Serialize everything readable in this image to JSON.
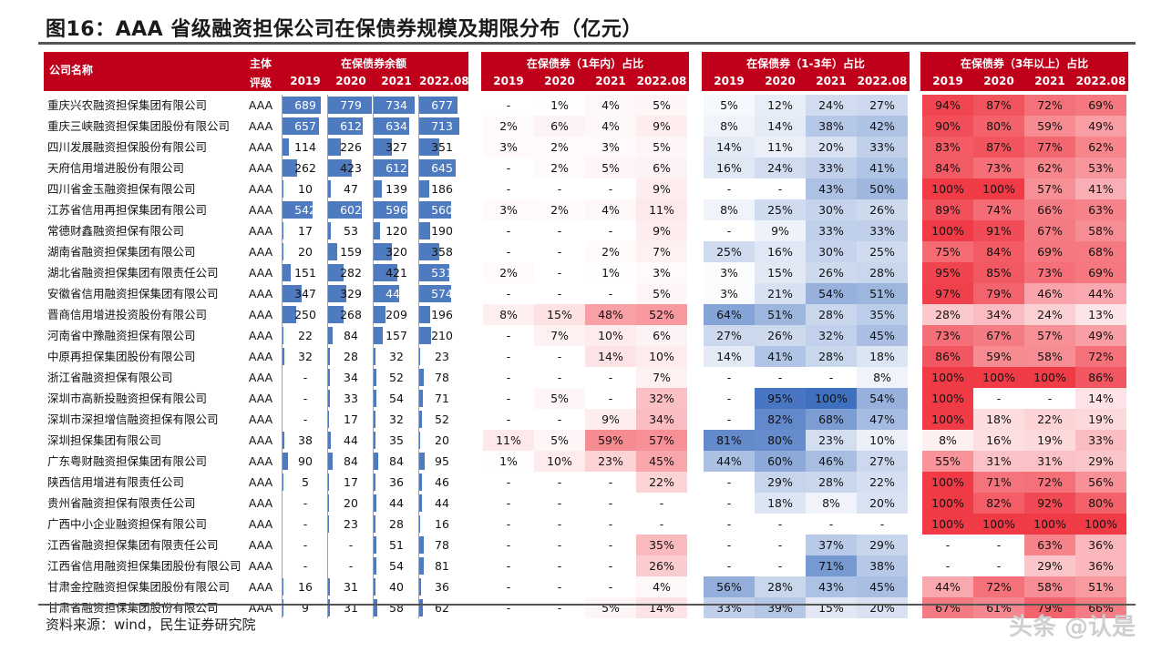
{
  "title": "图16：AAA 省级融资担保公司在保债券规模及期限分布（亿元）",
  "source": "资料来源：wind，民生证券研究院",
  "watermark": "头条 @认是",
  "colors": {
    "header_red": "#c0001a",
    "bar_blue": "#4e7bbf",
    "blue_max": "#3f6fbf",
    "red_max": "#f03a46"
  },
  "headers": {
    "company": "公司名称",
    "rating_1": "主体",
    "rating_2": "评级",
    "group_balance": "在保债券余额",
    "group_1y": "在保债券（1年内）占比",
    "group_1_3y": "在保债券（1-3年）占比",
    "group_3y": "在保债券（3年以上）占比",
    "years": [
      "2019",
      "2020",
      "2021",
      "2022.08"
    ]
  },
  "rows": [
    {
      "name": "重庆兴农融资担保集团有限公司",
      "rating": "AAA",
      "bal": [
        "689",
        "779",
        "734",
        "677"
      ],
      "p1": [
        "-",
        "1%",
        "4%",
        "5%"
      ],
      "p13": [
        "5%",
        "12%",
        "24%",
        "27%"
      ],
      "p3": [
        "94%",
        "87%",
        "72%",
        "69%"
      ]
    },
    {
      "name": "重庆三峡融资担保集团股份有限公司",
      "rating": "AAA",
      "bal": [
        "657",
        "612",
        "634",
        "713"
      ],
      "p1": [
        "2%",
        "6%",
        "4%",
        "9%"
      ],
      "p13": [
        "8%",
        "14%",
        "38%",
        "42%"
      ],
      "p3": [
        "90%",
        "80%",
        "59%",
        "49%"
      ]
    },
    {
      "name": "四川发展融资担保股份有限公司",
      "rating": "AAA",
      "bal": [
        "114",
        "226",
        "327",
        "351"
      ],
      "p1": [
        "3%",
        "2%",
        "3%",
        "5%"
      ],
      "p13": [
        "14%",
        "11%",
        "20%",
        "33%"
      ],
      "p3": [
        "83%",
        "87%",
        "77%",
        "62%"
      ]
    },
    {
      "name": "天府信用增进股份有限公司",
      "rating": "AAA",
      "bal": [
        "262",
        "423",
        "612",
        "645"
      ],
      "p1": [
        "-",
        "2%",
        "5%",
        "6%"
      ],
      "p13": [
        "16%",
        "24%",
        "33%",
        "41%"
      ],
      "p3": [
        "84%",
        "73%",
        "62%",
        "53%"
      ]
    },
    {
      "name": "四川省金玉融资担保有限公司",
      "rating": "AAA",
      "bal": [
        "10",
        "47",
        "139",
        "186"
      ],
      "p1": [
        "-",
        "-",
        "-",
        "9%"
      ],
      "p13": [
        "-",
        "-",
        "43%",
        "50%"
      ],
      "p3": [
        "100%",
        "100%",
        "57%",
        "41%"
      ]
    },
    {
      "name": "江苏省信用再担保集团有限公司",
      "rating": "AAA",
      "bal": [
        "542",
        "602",
        "596",
        "560"
      ],
      "p1": [
        "3%",
        "2%",
        "4%",
        "11%"
      ],
      "p13": [
        "8%",
        "25%",
        "30%",
        "26%"
      ],
      "p3": [
        "89%",
        "74%",
        "66%",
        "63%"
      ]
    },
    {
      "name": "常德财鑫融资担保有限公司",
      "rating": "AAA",
      "bal": [
        "17",
        "53",
        "120",
        "190"
      ],
      "p1": [
        "-",
        "-",
        "-",
        "9%"
      ],
      "p13": [
        "-",
        "9%",
        "33%",
        "33%"
      ],
      "p3": [
        "100%",
        "91%",
        "67%",
        "58%"
      ]
    },
    {
      "name": "湖南省融资担保集团有限公司",
      "rating": "AAA",
      "bal": [
        "20",
        "159",
        "320",
        "358"
      ],
      "p1": [
        "-",
        "-",
        "2%",
        "7%"
      ],
      "p13": [
        "25%",
        "16%",
        "30%",
        "25%"
      ],
      "p3": [
        "75%",
        "84%",
        "69%",
        "68%"
      ]
    },
    {
      "name": "湖北省融资担保集团有限责任公司",
      "rating": "AAA",
      "bal": [
        "151",
        "282",
        "421",
        "531"
      ],
      "p1": [
        "2%",
        "-",
        "1%",
        "3%"
      ],
      "p13": [
        "3%",
        "15%",
        "26%",
        "28%"
      ],
      "p3": [
        "95%",
        "85%",
        "73%",
        "69%"
      ]
    },
    {
      "name": "安徽省信用融资担保集团有限公司",
      "rating": "AAA",
      "bal": [
        "347",
        "329",
        "447",
        "574"
      ],
      "p1": [
        "-",
        "-",
        "-",
        "5%"
      ],
      "p13": [
        "3%",
        "21%",
        "54%",
        "51%"
      ],
      "p3": [
        "97%",
        "79%",
        "46%",
        "44%"
      ]
    },
    {
      "name": "晋商信用增进投资股份有限公司",
      "rating": "AAA",
      "bal": [
        "250",
        "268",
        "209",
        "196"
      ],
      "p1": [
        "8%",
        "15%",
        "48%",
        "52%"
      ],
      "p13": [
        "64%",
        "51%",
        "28%",
        "35%"
      ],
      "p3": [
        "28%",
        "34%",
        "24%",
        "13%"
      ]
    },
    {
      "name": "河南省中豫融资担保有限公司",
      "rating": "AAA",
      "bal": [
        "22",
        "84",
        "157",
        "210"
      ],
      "p1": [
        "-",
        "7%",
        "10%",
        "6%"
      ],
      "p13": [
        "27%",
        "26%",
        "32%",
        "45%"
      ],
      "p3": [
        "73%",
        "67%",
        "57%",
        "49%"
      ]
    },
    {
      "name": "中原再担保集团股份有限公司",
      "rating": "AAA",
      "bal": [
        "32",
        "28",
        "32",
        "23"
      ],
      "p1": [
        "-",
        "-",
        "14%",
        "10%"
      ],
      "p13": [
        "14%",
        "41%",
        "28%",
        "18%"
      ],
      "p3": [
        "86%",
        "59%",
        "58%",
        "72%"
      ]
    },
    {
      "name": "浙江省融资担保有限公司",
      "rating": "AAA",
      "bal": [
        "-",
        "34",
        "52",
        "78"
      ],
      "p1": [
        "-",
        "-",
        "-",
        "7%"
      ],
      "p13": [
        "-",
        "-",
        "-",
        "8%"
      ],
      "p3": [
        "100%",
        "100%",
        "100%",
        "86%"
      ]
    },
    {
      "name": "深圳市高新投融资担保有限公司",
      "rating": "AAA",
      "bal": [
        "-",
        "33",
        "54",
        "71"
      ],
      "p1": [
        "-",
        "5%",
        "-",
        "32%"
      ],
      "p13": [
        "-",
        "95%",
        "100%",
        "54%"
      ],
      "p3": [
        "100%",
        "-",
        "-",
        "14%"
      ]
    },
    {
      "name": "深圳市深担增信融资担保有限公司",
      "rating": "AAA",
      "bal": [
        "-",
        "17",
        "32",
        "52"
      ],
      "p1": [
        "-",
        "-",
        "9%",
        "34%"
      ],
      "p13": [
        "-",
        "82%",
        "68%",
        "47%"
      ],
      "p3": [
        "100%",
        "18%",
        "22%",
        "19%"
      ]
    },
    {
      "name": "深圳担保集团有限公司",
      "rating": "AAA",
      "bal": [
        "38",
        "44",
        "35",
        "20"
      ],
      "p1": [
        "11%",
        "5%",
        "59%",
        "57%"
      ],
      "p13": [
        "81%",
        "80%",
        "23%",
        "10%"
      ],
      "p3": [
        "8%",
        "16%",
        "19%",
        "33%"
      ]
    },
    {
      "name": "广东粤财融资担保集团有限公司",
      "rating": "AAA",
      "bal": [
        "90",
        "84",
        "84",
        "95"
      ],
      "p1": [
        "1%",
        "10%",
        "23%",
        "45%"
      ],
      "p13": [
        "44%",
        "60%",
        "46%",
        "27%"
      ],
      "p3": [
        "55%",
        "31%",
        "31%",
        "29%"
      ]
    },
    {
      "name": "陕西信用增进有限责任公司",
      "rating": "AAA",
      "bal": [
        "5",
        "17",
        "36",
        "46"
      ],
      "p1": [
        "-",
        "-",
        "-",
        "22%"
      ],
      "p13": [
        "-",
        "29%",
        "28%",
        "22%"
      ],
      "p3": [
        "100%",
        "71%",
        "72%",
        "56%"
      ]
    },
    {
      "name": "贵州省融资担保有限责任公司",
      "rating": "AAA",
      "bal": [
        "-",
        "20",
        "44",
        "44"
      ],
      "p1": [
        "-",
        "-",
        "-",
        "-"
      ],
      "p13": [
        "-",
        "18%",
        "8%",
        "20%"
      ],
      "p3": [
        "100%",
        "82%",
        "92%",
        "80%"
      ]
    },
    {
      "name": "广西中小企业融资担保有限公司",
      "rating": "AAA",
      "bal": [
        "-",
        "23",
        "28",
        "16"
      ],
      "p1": [
        "-",
        "-",
        "-",
        "-"
      ],
      "p13": [
        "-",
        "-",
        "-",
        "-"
      ],
      "p3": [
        "100%",
        "100%",
        "100%",
        "100%"
      ]
    },
    {
      "name": "江西省融资担保集团有限责任公司",
      "rating": "AAA",
      "bal": [
        "-",
        "-",
        "51",
        "78"
      ],
      "p1": [
        "-",
        "-",
        "-",
        "35%"
      ],
      "p13": [
        "-",
        "-",
        "37%",
        "29%"
      ],
      "p3": [
        "-",
        "-",
        "63%",
        "36%"
      ]
    },
    {
      "name": "江西省信用融资担保集团股份有限公司",
      "rating": "AAA",
      "bal": [
        "-",
        "-",
        "54",
        "81"
      ],
      "p1": [
        "-",
        "-",
        "-",
        "26%"
      ],
      "p13": [
        "-",
        "-",
        "71%",
        "38%"
      ],
      "p3": [
        "-",
        "-",
        "29%",
        "36%"
      ]
    },
    {
      "name": "甘肃金控融资担保集团股份有限公司",
      "rating": "AAA",
      "bal": [
        "16",
        "31",
        "40",
        "36"
      ],
      "p1": [
        "-",
        "-",
        "-",
        "4%"
      ],
      "p13": [
        "56%",
        "28%",
        "43%",
        "45%"
      ],
      "p3": [
        "44%",
        "72%",
        "58%",
        "51%"
      ]
    },
    {
      "name": "甘肃省融资担保集团股份有限公司",
      "rating": "AAA",
      "bal": [
        "9",
        "31",
        "58",
        "62"
      ],
      "p1": [
        "-",
        "-",
        "5%",
        "14%"
      ],
      "p13": [
        "33%",
        "39%",
        "15%",
        "20%"
      ],
      "p3": [
        "67%",
        "61%",
        "79%",
        "66%"
      ]
    }
  ]
}
